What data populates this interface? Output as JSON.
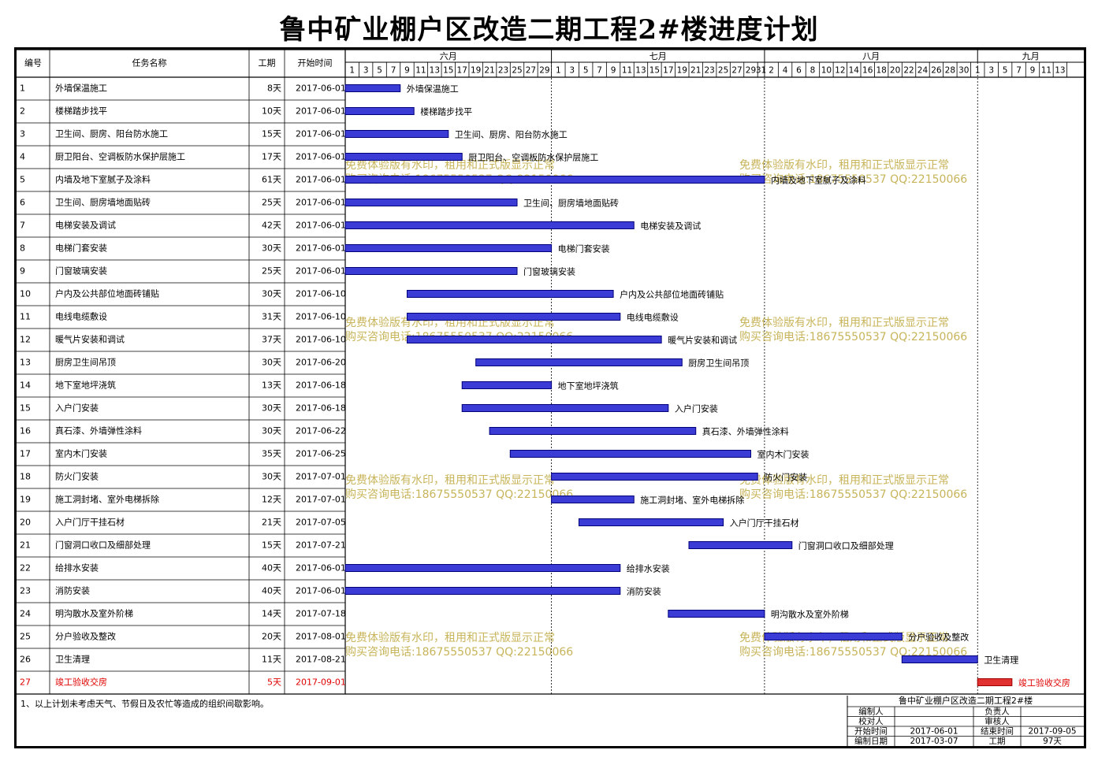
{
  "title": "鲁中矿业棚户区改造二期工程2#楼进度计划",
  "headers": {
    "no": "编号",
    "name": "任务名称",
    "duration": "工期",
    "start": "开始时间"
  },
  "months": [
    {
      "label": "六月",
      "start_day": 0,
      "days": 30
    },
    {
      "label": "七月",
      "start_day": 30,
      "days": 31
    },
    {
      "label": "八月",
      "start_day": 61,
      "days": 31
    },
    {
      "label": "九月",
      "start_day": 92,
      "days": 16
    }
  ],
  "day_ticks": [
    "1",
    "3",
    "5",
    "7",
    "9",
    "11",
    "13",
    "15",
    "17",
    "19",
    "21",
    "23",
    "25",
    "27",
    "29",
    "1",
    "3",
    "5",
    "7",
    "9",
    "11",
    "13",
    "15",
    "17",
    "19",
    "21",
    "23",
    "25",
    "27",
    "29",
    "31",
    "2",
    "4",
    "6",
    "8",
    "10",
    "12",
    "14",
    "16",
    "18",
    "20",
    "22",
    "24",
    "26",
    "28",
    "30",
    "1",
    "3",
    "5",
    "7",
    "9",
    "11",
    "13"
  ],
  "tasks": [
    {
      "no": "1",
      "name": "外墙保温施工",
      "duration": "8天",
      "start": "2017-06-01",
      "offset": 0,
      "days": 8
    },
    {
      "no": "2",
      "name": "楼梯踏步找平",
      "duration": "10天",
      "start": "2017-06-01",
      "offset": 0,
      "days": 10
    },
    {
      "no": "3",
      "name": "卫生间、厨房、阳台防水施工",
      "duration": "15天",
      "start": "2017-06-01",
      "offset": 0,
      "days": 15
    },
    {
      "no": "4",
      "name": "厨卫阳台、空调板防水保护层施工",
      "duration": "17天",
      "start": "2017-06-01",
      "offset": 0,
      "days": 17
    },
    {
      "no": "5",
      "name": "内墙及地下室腻子及涂料",
      "duration": "61天",
      "start": "2017-06-01",
      "offset": 0,
      "days": 61
    },
    {
      "no": "6",
      "name": "卫生间、厨房墙地面贴砖",
      "duration": "25天",
      "start": "2017-06-01",
      "offset": 0,
      "days": 25
    },
    {
      "no": "7",
      "name": "电梯安装及调试",
      "duration": "42天",
      "start": "2017-06-01",
      "offset": 0,
      "days": 42
    },
    {
      "no": "8",
      "name": "电梯门套安装",
      "duration": "30天",
      "start": "2017-06-01",
      "offset": 0,
      "days": 30
    },
    {
      "no": "9",
      "name": "门窗玻璃安装",
      "duration": "25天",
      "start": "2017-06-01",
      "offset": 0,
      "days": 25
    },
    {
      "no": "10",
      "name": "户内及公共部位地面砖铺贴",
      "duration": "30天",
      "start": "2017-06-10",
      "offset": 9,
      "days": 30
    },
    {
      "no": "11",
      "name": "电线电缆敷设",
      "duration": "31天",
      "start": "2017-06-10",
      "offset": 9,
      "days": 31
    },
    {
      "no": "12",
      "name": "暖气片安装和调试",
      "duration": "37天",
      "start": "2017-06-10",
      "offset": 9,
      "days": 37
    },
    {
      "no": "13",
      "name": "厨房卫生间吊顶",
      "duration": "30天",
      "start": "2017-06-20",
      "offset": 19,
      "days": 30
    },
    {
      "no": "14",
      "name": "地下室地坪浇筑",
      "duration": "13天",
      "start": "2017-06-18",
      "offset": 17,
      "days": 13
    },
    {
      "no": "15",
      "name": "入户门安装",
      "duration": "30天",
      "start": "2017-06-18",
      "offset": 17,
      "days": 30
    },
    {
      "no": "16",
      "name": "真石漆、外墙弹性涂料",
      "duration": "30天",
      "start": "2017-06-22",
      "offset": 21,
      "days": 30
    },
    {
      "no": "17",
      "name": "室内木门安装",
      "duration": "35天",
      "start": "2017-06-25",
      "offset": 24,
      "days": 35
    },
    {
      "no": "18",
      "name": "防火门安装",
      "duration": "30天",
      "start": "2017-07-01",
      "offset": 30,
      "days": 30
    },
    {
      "no": "19",
      "name": "施工洞封堵、室外电梯拆除",
      "duration": "12天",
      "start": "2017-07-01",
      "offset": 30,
      "days": 12
    },
    {
      "no": "20",
      "name": "入户门厅干挂石材",
      "duration": "21天",
      "start": "2017-07-05",
      "offset": 34,
      "days": 21
    },
    {
      "no": "21",
      "name": "门窗洞口收口及细部处理",
      "duration": "15天",
      "start": "2017-07-21",
      "offset": 50,
      "days": 15
    },
    {
      "no": "22",
      "name": "给排水安装",
      "duration": "40天",
      "start": "2017-06-01",
      "offset": 0,
      "days": 40
    },
    {
      "no": "23",
      "name": "消防安装",
      "duration": "40天",
      "start": "2017-06-01",
      "offset": 0,
      "days": 40
    },
    {
      "no": "24",
      "name": "明沟散水及室外阶梯",
      "duration": "14天",
      "start": "2017-07-18",
      "offset": 47,
      "days": 14
    },
    {
      "no": "25",
      "name": "分户验收及整改",
      "duration": "20天",
      "start": "2017-08-01",
      "offset": 61,
      "days": 20
    },
    {
      "no": "26",
      "name": "卫生清理",
      "duration": "11天",
      "start": "2017-08-21",
      "offset": 81,
      "days": 11
    },
    {
      "no": "27",
      "name": "竣工验收交房",
      "duration": "5天",
      "start": "2017-09-01",
      "offset": 92,
      "days": 5,
      "critical": true
    }
  ],
  "colors": {
    "bar": "#3b3bd6",
    "bar_stroke": "#00007a",
    "critical": "#e03030",
    "critical_text": "#e00000",
    "watermark": "#c8b45a"
  },
  "watermark": {
    "line1": "免费体验版有水印，租用和正式版显示正常",
    "line2": "购买咨询电话:18675550537 QQ:22150066"
  },
  "note": "1、以上计划未考虑天气、节假日及农忙等造成的组织间歇影响。",
  "info": {
    "project": "鲁中矿业棚户区改造二期工程2#楼",
    "editor_label": "编制人",
    "leader_label": "负责人",
    "proof_label": "校对人",
    "audit_label": "审核人",
    "start_label": "开始时间",
    "start_value": "2017-06-01",
    "end_label": "结束时间",
    "end_value": "2017-09-05",
    "date_label": "编制日期",
    "date_value": "2017-03-07",
    "period_label": "工期",
    "period_value": "97天"
  }
}
